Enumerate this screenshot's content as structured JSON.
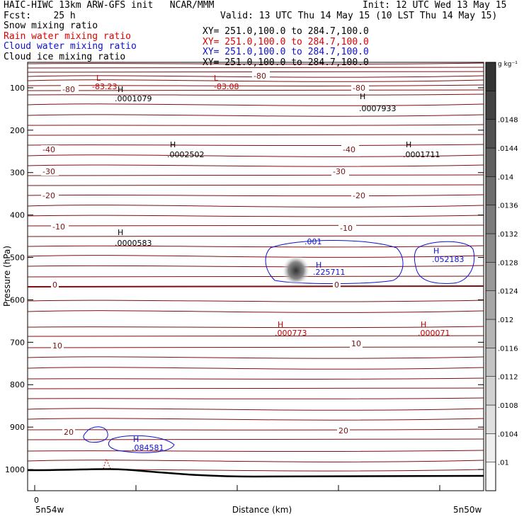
{
  "header": {
    "left": [
      {
        "text": "HAIC-HIWC 13km ARW-GFS init   NCAR/MMM",
        "color": "#000000"
      },
      {
        "text": "Fcst:    25 h",
        "color": "#000000"
      },
      {
        "text": "Snow mixing ratio",
        "color": "#000000"
      },
      {
        "text": "Rain water mixing ratio",
        "color": "#e00000"
      },
      {
        "text": "Cloud water mixing ratio",
        "color": "#1010d0"
      },
      {
        "text": "Cloud ice mixing ratio",
        "color": "#000000"
      }
    ],
    "right": [
      {
        "text": "Init: 12 UTC Wed 13 May 15",
        "color": "#000000"
      },
      {
        "text": "Valid: 13 UTC Thu 14 May 15 (10 LST Thu 14 May 15)",
        "color": "#000000"
      }
    ],
    "xy": [
      {
        "text": "XY= 251.0,100.0 to 284.7,100.0",
        "color": "#000000"
      },
      {
        "text": "XY= 251.0,100.0 to 284.7,100.0",
        "color": "#e00000"
      },
      {
        "text": "XY= 251.0,100.0 to 284.7,100.0",
        "color": "#1010d0"
      },
      {
        "text": "XY= 251.0,100.0 to 284.7,100.0",
        "color": "#000000"
      }
    ]
  },
  "chart_data": {
    "type": "contour",
    "xlabel": "Distance (km)",
    "ylabel": "Pressure (hPa)",
    "ylim": [
      1050,
      40
    ],
    "yticks": [
      100,
      200,
      300,
      400,
      500,
      600,
      700,
      800,
      900,
      1000
    ],
    "x_tick_start": "0",
    "x_left_label": "5n54w",
    "x_right_label": "5n50w",
    "colorbar": {
      "unit": "g kg⁻¹",
      "ticks": [
        ".01",
        ".0104",
        ".0108",
        ".0112",
        ".0116",
        ".012",
        ".0124",
        ".0128",
        ".0132",
        ".0136",
        ".014",
        ".0144",
        ".0148"
      ]
    },
    "temperature_contours": [
      {
        "label": "-80",
        "positions": [
          "-80",
          "-80",
          "-80"
        ]
      },
      {
        "label": "-40",
        "positions": [
          "-40",
          "-40"
        ]
      },
      {
        "label": "-30",
        "positions": [
          "-30",
          "-30"
        ]
      },
      {
        "label": "-20",
        "positions": [
          "-20",
          "-20"
        ]
      },
      {
        "label": "-10",
        "positions": [
          "-10",
          "-10"
        ]
      },
      {
        "label": "0",
        "positions": [
          "0",
          "0"
        ]
      },
      {
        "label": "10",
        "positions": [
          "10",
          "10"
        ]
      },
      {
        "label": "20",
        "positions": [
          "20",
          "20"
        ]
      }
    ],
    "extrema": {
      "black": [
        {
          "mark": "H",
          "value": ".0001079"
        },
        {
          "mark": "H",
          "value": ".0007933"
        },
        {
          "mark": "H",
          "value": ".0002502"
        },
        {
          "mark": "H",
          "value": ".0001711"
        },
        {
          "mark": "H",
          "value": ".0000583"
        }
      ],
      "red": [
        {
          "mark": "L",
          "value": "-83.23"
        },
        {
          "mark": "L",
          "value": "-83.08"
        },
        {
          "mark": "H",
          "value": ".000773"
        },
        {
          "mark": "H",
          "value": ".000071"
        }
      ],
      "blue": [
        {
          "mark": "H",
          "value": ".225711"
        },
        {
          "mark": "H",
          "value": ".052183"
        },
        {
          "mark": "H",
          "value": ".084581"
        }
      ],
      "blue_contour_label": ".001"
    }
  }
}
